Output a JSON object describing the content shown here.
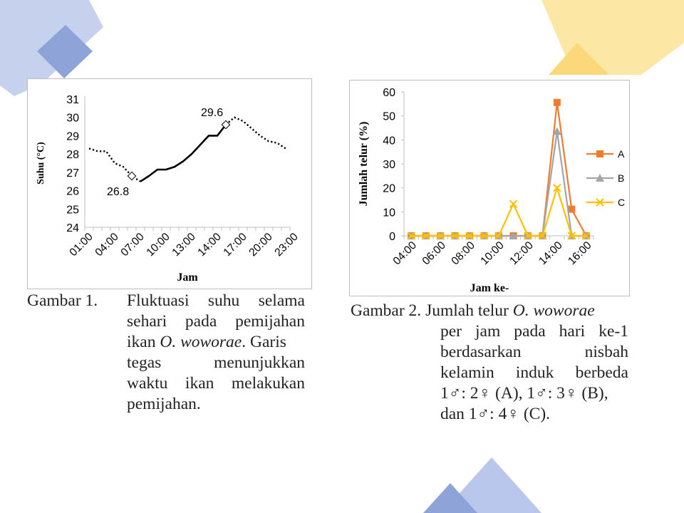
{
  "colors": {
    "deco_blue": "#aebfe6",
    "deco_blue_dark": "#8ea3d8",
    "deco_yellow": "#fde7a4",
    "deco_yellow_dark": "#fbd97a",
    "series_A": "#ed7d31",
    "series_B": "#a5a5a5",
    "series_C": "#ffc000",
    "line_black": "#000000"
  },
  "chart_data": [
    {
      "type": "line",
      "ylabel": "Suhu (°C)",
      "xlabel": "Jam",
      "ylim": [
        24,
        31
      ],
      "yticks": [
        "24",
        "25",
        "26",
        "27",
        "28",
        "29",
        "30",
        "31"
      ],
      "xtick_labels": [
        "01:00",
        "04:00",
        "07:00",
        "10:00",
        "13:00",
        "14:00",
        "17:00",
        "20:00",
        "23:00"
      ],
      "x": [
        1,
        2,
        3,
        4,
        5,
        6,
        7,
        8,
        9,
        10,
        11,
        12,
        13,
        14,
        15,
        16,
        17,
        18,
        19,
        20,
        21,
        22,
        23,
        24
      ],
      "series": [
        {
          "style": "dotted",
          "x": [
            1,
            2,
            3,
            4,
            5,
            6,
            7
          ],
          "values": [
            28.3,
            28.15,
            28.15,
            27.5,
            27.3,
            26.8,
            26.5
          ]
        },
        {
          "style": "solid",
          "x": [
            7,
            8,
            9,
            10,
            11,
            12,
            13,
            14,
            15,
            16,
            17
          ],
          "values": [
            26.5,
            26.8,
            27.15,
            27.15,
            27.3,
            27.6,
            28.0,
            28.5,
            29.0,
            29.0,
            29.6
          ]
        },
        {
          "style": "dotted",
          "x": [
            17,
            18,
            19,
            20,
            21,
            22,
            23,
            24
          ],
          "values": [
            29.6,
            30.0,
            29.8,
            29.4,
            29.0,
            28.7,
            28.6,
            28.3
          ]
        }
      ],
      "annotations": [
        {
          "label": "26.8",
          "x": 6,
          "y": 26.8
        },
        {
          "label": "29.6",
          "x": 17,
          "y": 29.6
        }
      ]
    },
    {
      "type": "line",
      "ylabel": "Jumlah telur (%)",
      "xlabel": "Jam ke-",
      "ylim": [
        0,
        60
      ],
      "yticks": [
        "0",
        "10",
        "20",
        "30",
        "40",
        "50",
        "60"
      ],
      "xtick_labels": [
        "04:00",
        "06:00",
        "08:00",
        "10:00",
        "12:00",
        "14:00",
        "16:00"
      ],
      "x": [
        4,
        5,
        6,
        7,
        8,
        9,
        10,
        11,
        12,
        13,
        14,
        15,
        16
      ],
      "series": [
        {
          "name": "A",
          "marker": "square",
          "values": [
            0,
            0,
            0,
            0,
            0,
            0,
            0,
            0,
            0,
            0,
            55.6,
            11.1,
            0
          ]
        },
        {
          "name": "B",
          "marker": "triangle",
          "values": [
            0,
            0,
            0,
            0,
            0,
            0,
            0,
            0,
            0,
            0,
            43.5,
            0,
            0
          ]
        },
        {
          "name": "C",
          "marker": "x",
          "values": [
            0,
            0,
            0,
            0,
            0,
            0,
            0,
            13.3,
            0,
            0,
            20,
            0,
            0
          ]
        }
      ],
      "legend_position": "right"
    }
  ],
  "caption1": {
    "label": "Gambar 1.",
    "lines": [
      [
        "Fluktuasi",
        "suhu",
        "selama"
      ],
      [
        "sehari",
        "pada",
        "pemijahan"
      ],
      [
        "ikan ",
        {
          "i": "O. woworae"
        },
        ". Garis"
      ],
      [
        "tegas",
        "menunjukkan"
      ],
      [
        "waktu",
        "ikan",
        "melakukan"
      ],
      [
        "pemijahan."
      ]
    ]
  },
  "caption2": {
    "label": "Gambar 2.",
    "first_line": "Jumlah telur ",
    "first_italic": "O. woworae",
    "lines": [
      [
        "per",
        "jam",
        "pada",
        "hari",
        "ke-1"
      ],
      [
        "berdasarkan",
        "nisbah"
      ],
      [
        "kelamin",
        "induk",
        "berbeda"
      ],
      [
        "1♂: 2♀ (A), 1♂: 3♀ (B),"
      ],
      [
        "dan 1♂: 4♀ (C)."
      ]
    ]
  }
}
